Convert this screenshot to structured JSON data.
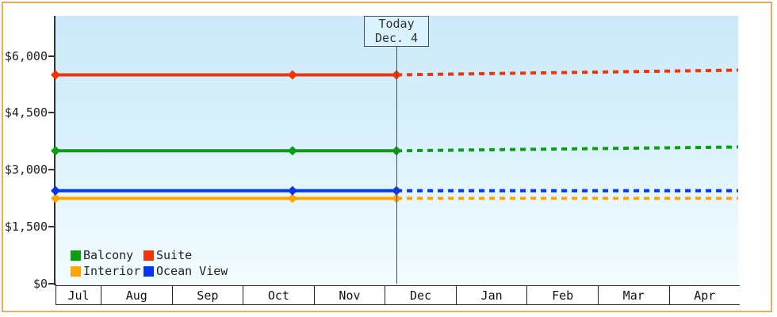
{
  "page": {
    "frame_color": "#ecaa5a",
    "background": "#ffffff"
  },
  "today_flag": {
    "line1": "Today",
    "line2": "Dec. 4"
  },
  "legend": {
    "items": [
      {
        "label": "Balcony",
        "color": "#0a9e11"
      },
      {
        "label": "Suite",
        "color": "#f13307"
      },
      {
        "label": "Interior",
        "color": "#ffa502"
      },
      {
        "label": "Ocean View",
        "color": "#0435ef"
      }
    ]
  },
  "chart_data": {
    "type": "line",
    "title": "",
    "xlabel": "",
    "ylabel": "",
    "grid": false,
    "legend_position": "inside-bottom-left",
    "x_axis": {
      "months": [
        "Jul",
        "Aug",
        "Sep",
        "Oct",
        "Nov",
        "Dec",
        "Jan",
        "Feb",
        "Mar",
        "Apr"
      ],
      "time_unit": "months-since-Jul-1",
      "start_month_fraction": 0.35,
      "today_t": 5.17,
      "today_date_label": "Dec. 4"
    },
    "y_axis": {
      "unit": "USD",
      "visible_max": 7050,
      "ticks": [
        {
          "label": "$0",
          "value": 0
        },
        {
          "label": "$1,500",
          "value": 1500
        },
        {
          "label": "$3,000",
          "value": 3000
        },
        {
          "label": "$4,500",
          "value": 4500
        },
        {
          "label": "$6,000",
          "value": 6000
        }
      ]
    },
    "series": [
      {
        "name": "Balcony",
        "color": "#0a9e11",
        "observed": [
          {
            "t": 0.35,
            "price": 3500
          },
          {
            "t": 3.7,
            "price": 3500
          },
          {
            "t": 5.17,
            "price": 3500
          }
        ],
        "forecast": [
          {
            "t": 5.17,
            "price": 3500
          },
          {
            "t": 10,
            "price": 3600
          }
        ]
      },
      {
        "name": "Suite",
        "color": "#f13307",
        "observed": [
          {
            "t": 0.35,
            "price": 5500
          },
          {
            "t": 3.7,
            "price": 5500
          },
          {
            "t": 5.17,
            "price": 5500
          }
        ],
        "forecast": [
          {
            "t": 5.17,
            "price": 5500
          },
          {
            "t": 10,
            "price": 5625
          }
        ]
      },
      {
        "name": "Interior",
        "color": "#ffa502",
        "observed": [
          {
            "t": 0.35,
            "price": 2250
          },
          {
            "t": 3.7,
            "price": 2250
          },
          {
            "t": 5.17,
            "price": 2250
          }
        ],
        "forecast": [
          {
            "t": 5.17,
            "price": 2250
          },
          {
            "t": 10,
            "price": 2250
          }
        ]
      },
      {
        "name": "Ocean View",
        "color": "#0435ef",
        "observed": [
          {
            "t": 0.35,
            "price": 2450
          },
          {
            "t": 3.7,
            "price": 2450
          },
          {
            "t": 5.17,
            "price": 2450
          }
        ],
        "forecast": [
          {
            "t": 5.17,
            "price": 2450
          },
          {
            "t": 10,
            "price": 2450
          }
        ]
      }
    ]
  }
}
